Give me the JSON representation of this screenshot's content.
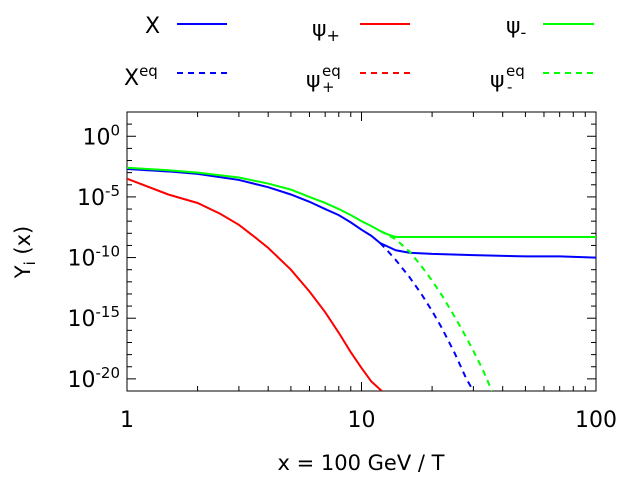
{
  "chart_data": {
    "type": "line",
    "title": "",
    "xlabel": "x = 100 GeV / T",
    "ylabel": {
      "base": "Y",
      "sub": "i",
      "rest": " (x)"
    },
    "xscale": "log",
    "yscale": "log",
    "xlim": [
      1,
      100
    ],
    "ylim": [
      1e-21,
      100.0
    ],
    "grid": false,
    "legend_position": "top",
    "x_ticks": [
      {
        "value": 1,
        "label": "1"
      },
      {
        "value": 10,
        "label": "10"
      },
      {
        "value": 100,
        "label": "100"
      }
    ],
    "y_ticks": [
      {
        "exp": 0,
        "base": "10",
        "sup": "0"
      },
      {
        "exp": -5,
        "base": "10",
        "sup": "-5"
      },
      {
        "exp": -10,
        "base": "10",
        "sup": "-10"
      },
      {
        "exp": -15,
        "base": "10",
        "sup": "-15"
      },
      {
        "exp": -20,
        "base": "10",
        "sup": "-20"
      }
    ],
    "series": [
      {
        "id": "X",
        "legend": {
          "base": "X",
          "sup": "",
          "sub": ""
        },
        "color": "#0000ff",
        "dash": "solid",
        "x": [
          1,
          1.5,
          2,
          3,
          4,
          5,
          6,
          7,
          8,
          9,
          10,
          11,
          12,
          14,
          16,
          20,
          30,
          50,
          70,
          100
        ],
        "log10_y": [
          -2.7,
          -2.9,
          -3.1,
          -3.6,
          -4.2,
          -4.8,
          -5.4,
          -6.0,
          -6.5,
          -7.1,
          -7.7,
          -8.2,
          -8.8,
          -9.4,
          -9.6,
          -9.7,
          -9.8,
          -9.9,
          -9.9,
          -10.0
        ]
      },
      {
        "id": "X_eq",
        "legend": {
          "base": "X",
          "sup": "eq",
          "sub": ""
        },
        "color": "#0000ff",
        "dash": "dashed",
        "x": [
          12,
          13,
          14,
          16,
          18,
          20,
          22,
          25,
          28,
          30
        ],
        "log10_y": [
          -8.8,
          -9.5,
          -10.2,
          -11.6,
          -13.0,
          -14.4,
          -15.8,
          -17.9,
          -20.0,
          -21.0
        ]
      },
      {
        "id": "psi_plus",
        "legend": {
          "base": "ψ",
          "sup": "",
          "sub": "+"
        },
        "color": "#ff0000",
        "dash": "solid",
        "x": [
          1,
          1.5,
          2,
          2.5,
          3,
          3.5,
          4,
          5,
          6,
          7,
          8,
          9,
          10,
          11,
          12.2
        ],
        "log10_y": [
          -3.5,
          -4.8,
          -5.5,
          -6.4,
          -7.3,
          -8.3,
          -9.2,
          -11.0,
          -12.8,
          -14.5,
          -16.2,
          -17.8,
          -19.1,
          -20.2,
          -21.0
        ]
      },
      {
        "id": "psi_plus_eq",
        "legend": {
          "base": "ψ",
          "sup": "eq",
          "sub": "+"
        },
        "color": "#ff0000",
        "dash": "dashed",
        "x": [],
        "log10_y": []
      },
      {
        "id": "psi_minus",
        "legend": {
          "base": "ψ",
          "sup": "",
          "sub": "-"
        },
        "color": "#00ff00",
        "dash": "solid",
        "x": [
          1,
          1.5,
          2,
          3,
          4,
          5,
          6,
          7,
          8,
          9,
          10,
          11,
          12,
          13,
          14,
          16,
          20,
          30,
          50,
          100
        ],
        "log10_y": [
          -2.6,
          -2.8,
          -3.0,
          -3.4,
          -3.9,
          -4.4,
          -5.0,
          -5.5,
          -6.0,
          -6.5,
          -7.0,
          -7.4,
          -7.8,
          -8.1,
          -8.3,
          -8.3,
          -8.3,
          -8.3,
          -8.3,
          -8.3
        ]
      },
      {
        "id": "psi_minus_eq",
        "legend": {
          "base": "ψ",
          "sup": "eq",
          "sub": "-"
        },
        "color": "#00ff00",
        "dash": "dashed",
        "x": [
          12,
          14,
          16,
          18,
          20,
          22,
          25,
          28,
          30,
          33,
          36
        ],
        "log10_y": [
          -7.8,
          -8.5,
          -9.5,
          -10.7,
          -11.9,
          -13.1,
          -14.9,
          -16.6,
          -17.7,
          -19.3,
          -21.0
        ]
      }
    ]
  }
}
